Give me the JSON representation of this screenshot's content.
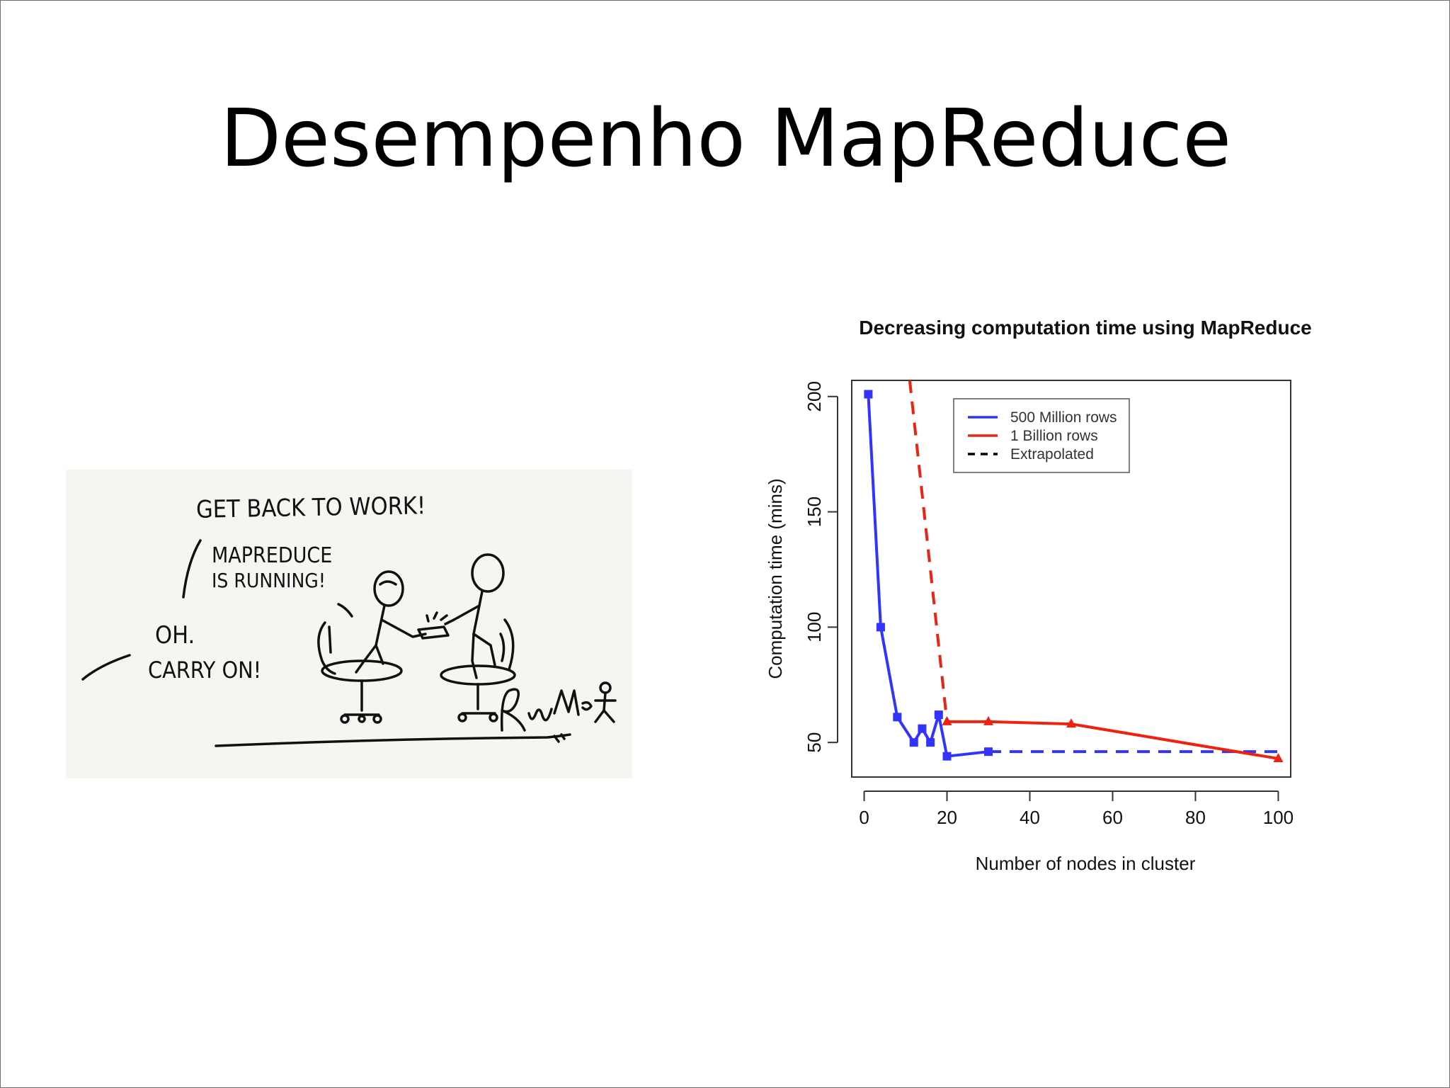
{
  "slide": {
    "title": "Desempenho MapReduce"
  },
  "cartoon": {
    "lines": [
      {
        "key": "get_back",
        "text": "GET BACK TO WORK!"
      },
      {
        "key": "mapreduce",
        "text": "MAPREDUCE"
      },
      {
        "key": "is_running",
        "text": "IS RUNNING!"
      },
      {
        "key": "oh",
        "text": "OH."
      },
      {
        "key": "carry_on",
        "text": "CARRY ON!"
      }
    ]
  },
  "chart_data": {
    "type": "line",
    "title": "Decreasing computation time using MapReduce",
    "xlabel": "Number of nodes in cluster",
    "ylabel": "Computation time (mins)",
    "xlim": [
      -3,
      103
    ],
    "ylim": [
      35,
      207
    ],
    "xticks": [
      0,
      20,
      40,
      60,
      80,
      100
    ],
    "yticks": [
      50,
      100,
      150,
      200
    ],
    "grid": false,
    "legend_position": "top-right",
    "legend": [
      {
        "label": "500 Million rows",
        "color": "#3333ff",
        "dash": false
      },
      {
        "label": "1 Billion rows",
        "color": "#ee2211",
        "dash": false
      },
      {
        "label": "Extrapolated",
        "color": "#000000",
        "dash": true
      }
    ],
    "series": [
      {
        "name": "500 Million rows",
        "color": "#3333ff",
        "marker": "square",
        "x": [
          1,
          4,
          8,
          12,
          14,
          16,
          18,
          20,
          30
        ],
        "y": [
          201,
          100,
          61,
          50,
          56,
          50,
          62,
          44,
          46
        ]
      },
      {
        "name": "1 Billion rows",
        "color": "#ee2211",
        "marker": "triangle",
        "x": [
          20,
          30,
          50,
          100
        ],
        "y": [
          59,
          59,
          58,
          43
        ]
      }
    ],
    "extrapolated": [
      {
        "series": "500 Million rows",
        "color": "#3333ff",
        "x": [
          30,
          100
        ],
        "y": [
          46,
          46
        ]
      },
      {
        "series": "1 Billion rows",
        "color": "#ee2211",
        "x": [
          11,
          20
        ],
        "y": [
          207,
          59
        ]
      }
    ]
  }
}
